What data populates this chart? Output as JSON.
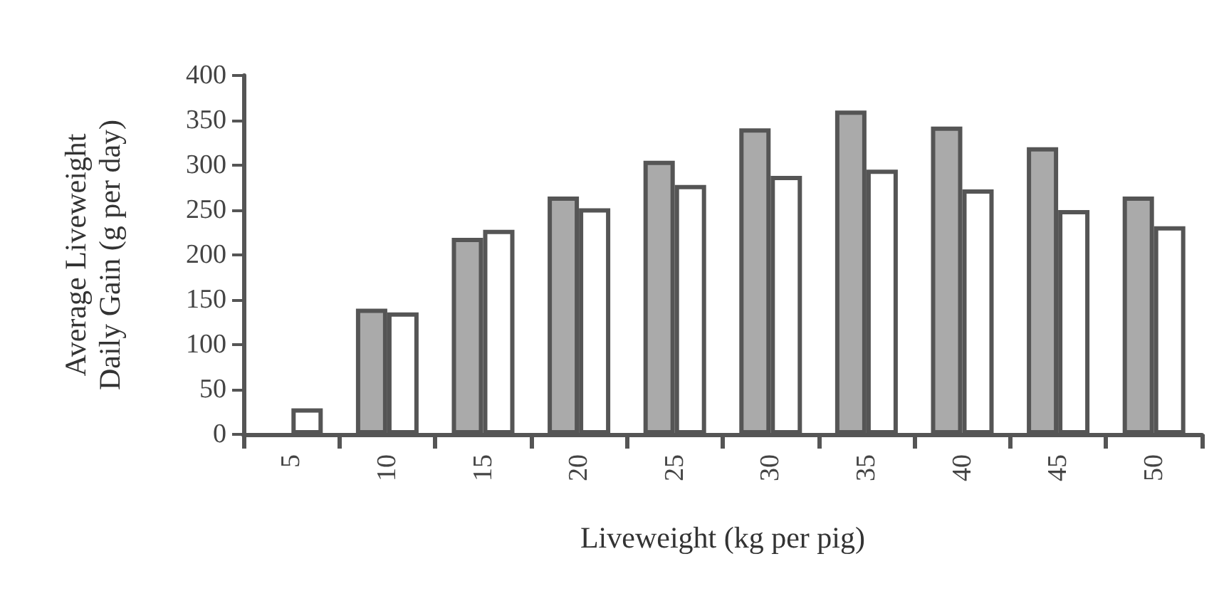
{
  "chart_data": {
    "type": "bar",
    "xlabel": "Liveweight (kg per pig)",
    "ylabel": "Average Liveweight\nDaily Gain (g per day)",
    "categories": [
      "5",
      "10",
      "15",
      "20",
      "25",
      "30",
      "35",
      "40",
      "45",
      "50"
    ],
    "series": [
      {
        "color": "#aaaaaa",
        "values": [
          null,
          140,
          219,
          265,
          305,
          341,
          361,
          343,
          320,
          265
        ]
      },
      {
        "color": "#ffffff",
        "values": [
          29,
          136,
          228,
          252,
          278,
          288,
          295,
          273,
          250,
          232
        ]
      }
    ],
    "ylim": [
      0,
      400
    ],
    "yticks": [
      0,
      50,
      100,
      150,
      200,
      250,
      300,
      350,
      400
    ],
    "grid": false
  }
}
